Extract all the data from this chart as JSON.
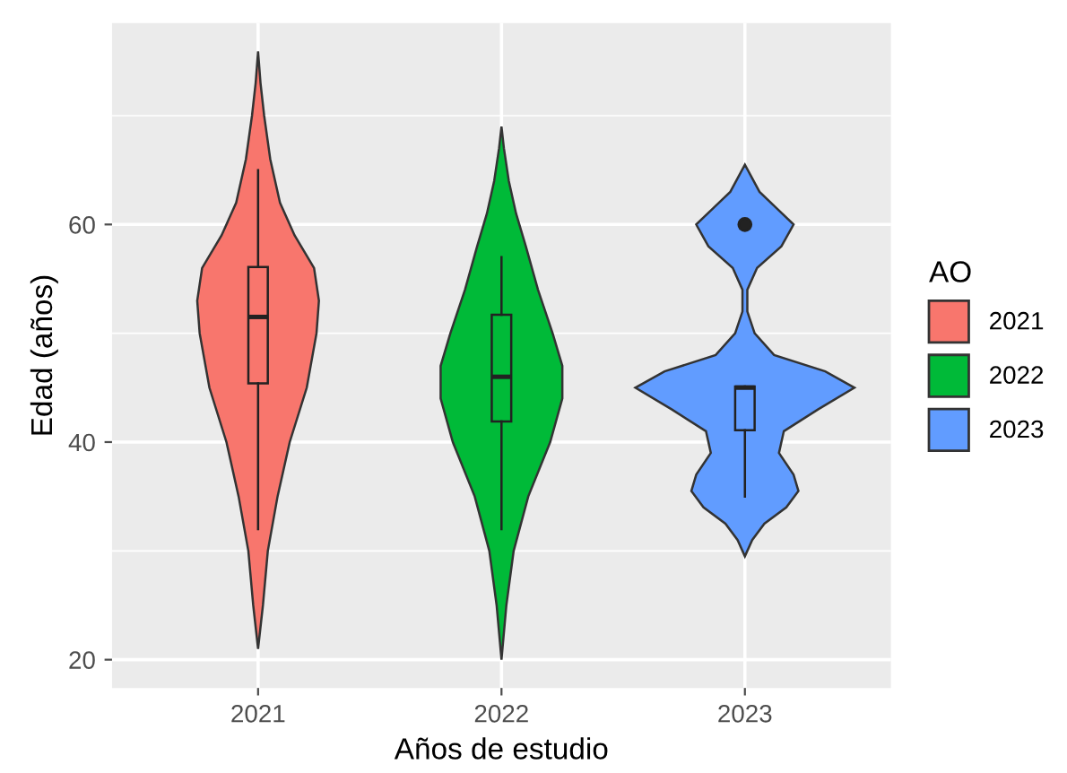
{
  "chart_data": {
    "type": "box",
    "xlabel": "Años de estudio",
    "ylabel": "Edad (años)",
    "legend_title": "AO",
    "categories": [
      "2021",
      "2022",
      "2023"
    ],
    "series": [
      {
        "name": "2021",
        "color": "#f8766d",
        "boxes": [
          {
            "low": 32,
            "q1": 45.4,
            "median": 51.5,
            "q3": 56.1,
            "high": 65
          },
          null,
          null
        ]
      },
      {
        "name": "2022",
        "color": "#00ba38",
        "boxes": [
          null,
          {
            "low": 32,
            "q1": 41.9,
            "median": 46,
            "q3": 51.7,
            "high": 57
          },
          null
        ]
      },
      {
        "name": "2023",
        "color": "#619cff",
        "boxes": [
          null,
          null,
          {
            "low": 35,
            "q1": 41.1,
            "median": 45,
            "q3": 45.1,
            "high": 45.1,
            "outliers": [
              60
            ]
          }
        ]
      }
    ],
    "ylim": [
      17.4,
      78.5
    ],
    "yticks": [
      20,
      40,
      60
    ],
    "grid": true,
    "legend": "right"
  }
}
